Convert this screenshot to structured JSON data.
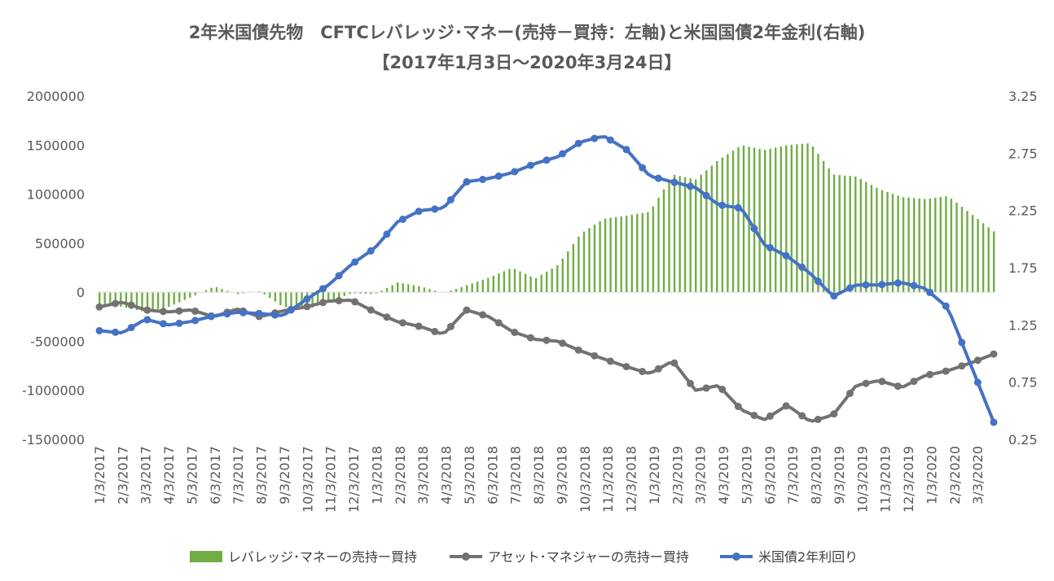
{
  "chart_data": {
    "type": "bar+line",
    "title": "2年米国債先物　CFTCレバレッジ･マネー(売持－買持：左軸)と米国国債2年金利(右軸)",
    "subtitle": "【2017年1月3日～2020年3月24日】",
    "y_left": {
      "ticks": [
        "2000000",
        "1500000",
        "1000000",
        "500000",
        "0",
        "-500000",
        "-1000000",
        "-1500000"
      ],
      "range": [
        -1500000,
        2000000
      ]
    },
    "y_right": {
      "ticks": [
        "3.25",
        "2.75",
        "2.25",
        "1.75",
        "1.25",
        "0.75",
        "0.25"
      ],
      "range": [
        0.25,
        3.25
      ]
    },
    "x_ticks": [
      "1/3/2017",
      "2/3/2017",
      "3/3/2017",
      "4/3/2017",
      "5/3/2017",
      "6/3/2017",
      "7/3/2017",
      "8/3/2017",
      "9/3/2017",
      "10/3/2017",
      "11/3/2017",
      "12/3/2017",
      "1/3/2018",
      "2/3/2018",
      "3/3/2018",
      "4/3/2018",
      "5/3/2018",
      "6/3/2018",
      "7/3/2018",
      "8/3/2018",
      "9/3/2018",
      "10/3/2018",
      "11/3/2018",
      "12/3/2018",
      "1/3/2019",
      "2/3/2019",
      "3/3/2019",
      "4/3/2019",
      "5/3/2019",
      "6/3/2019",
      "7/3/2019",
      "8/3/2019",
      "9/3/2019",
      "10/3/2019",
      "11/3/2019",
      "12/3/2019",
      "1/3/2020",
      "2/3/2020",
      "3/3/2020"
    ],
    "colors": {
      "leveraged": "#70AD47",
      "asset": "#767171",
      "yield": "#4472C4"
    },
    "series": [
      {
        "name": "レバレッジ･マネーの売持ー買持",
        "axis": "left",
        "kind": "bar",
        "monthly_anchors": [
          -120000,
          -150000,
          -200000,
          -150000,
          -50000,
          60000,
          -20000,
          10000,
          -150000,
          -180000,
          -100000,
          -10000,
          -20000,
          100000,
          60000,
          -10000,
          70000,
          150000,
          250000,
          140000,
          280000,
          600000,
          750000,
          780000,
          820000,
          1200000,
          1150000,
          1350000,
          1500000,
          1450000,
          1500000,
          1520000,
          1200000,
          1180000,
          1050000,
          970000,
          950000,
          980000,
          800000,
          620000
        ]
      },
      {
        "name": "アセット･マネジャーの売持ー買持",
        "axis": "left",
        "kind": "line",
        "monthly_anchors": [
          -150000,
          -100000,
          -180000,
          -200000,
          -180000,
          -250000,
          -170000,
          -250000,
          -190000,
          -150000,
          -90000,
          -80000,
          -200000,
          -300000,
          -350000,
          -430000,
          -180000,
          -250000,
          -400000,
          -480000,
          -500000,
          -600000,
          -680000,
          -760000,
          -830000,
          -700000,
          -1000000,
          -950000,
          -1200000,
          -1300000,
          -1150000,
          -1320000,
          -1250000,
          -950000,
          -900000,
          -970000,
          -850000,
          -800000,
          -720000,
          -630000
        ]
      },
      {
        "name": "米国債2年利回り",
        "axis": "right",
        "kind": "line",
        "monthly_anchors": [
          1.2,
          1.18,
          1.3,
          1.25,
          1.28,
          1.33,
          1.36,
          1.35,
          1.33,
          1.47,
          1.6,
          1.78,
          1.92,
          2.15,
          2.25,
          2.27,
          2.5,
          2.53,
          2.58,
          2.66,
          2.72,
          2.85,
          2.9,
          2.78,
          2.55,
          2.5,
          2.45,
          2.3,
          2.27,
          1.95,
          1.85,
          1.7,
          1.5,
          1.6,
          1.6,
          1.62,
          1.57,
          1.4,
          0.9,
          0.4
        ]
      }
    ]
  }
}
